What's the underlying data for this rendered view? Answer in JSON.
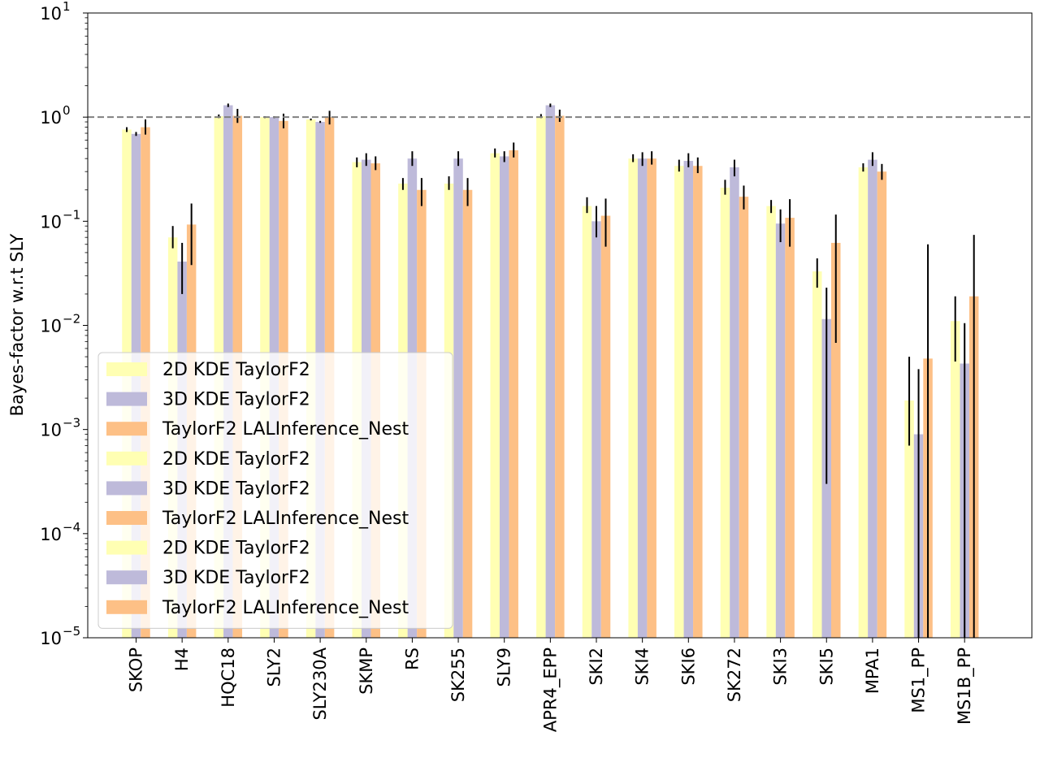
{
  "chart_data": {
    "type": "bar",
    "title": "",
    "xlabel": "",
    "ylabel": "Bayes-factor w.r.t SLY",
    "yscale": "log",
    "ylim": [
      1e-05,
      10
    ],
    "y_ticks": [
      {
        "value": 1e-05,
        "base": "10",
        "exp": "−5"
      },
      {
        "value": 0.0001,
        "base": "10",
        "exp": "−4"
      },
      {
        "value": 0.001,
        "base": "10",
        "exp": "−3"
      },
      {
        "value": 0.01,
        "base": "10",
        "exp": "−2"
      },
      {
        "value": 0.1,
        "base": "10",
        "exp": "−1"
      },
      {
        "value": 1,
        "base": "10",
        "exp": "0"
      },
      {
        "value": 10,
        "base": "10",
        "exp": "1"
      }
    ],
    "reference_line": {
      "y": 1,
      "style": "dashed",
      "color": "#808080"
    },
    "grid": false,
    "legend_position": "lower-left",
    "legend": [
      {
        "label": "2D KDE TaylorF2",
        "color": "#ffffb3"
      },
      {
        "label": "3D KDE TaylorF2",
        "color": "#bebada"
      },
      {
        "label": "TaylorF2 LALInference_Nest",
        "color": "#fdc086"
      },
      {
        "label": "2D KDE TaylorF2",
        "color": "#ffffb3"
      },
      {
        "label": "3D KDE TaylorF2",
        "color": "#bebada"
      },
      {
        "label": "TaylorF2 LALInference_Nest",
        "color": "#fdc086"
      },
      {
        "label": "2D KDE TaylorF2",
        "color": "#ffffb3"
      },
      {
        "label": "3D KDE TaylorF2",
        "color": "#bebada"
      },
      {
        "label": "TaylorF2 LALInference_Nest",
        "color": "#fdc086"
      }
    ],
    "categories": [
      "SKOP",
      "H4",
      "HQC18",
      "SLY2",
      "SLY230A",
      "SKMP",
      "RS",
      "SK255",
      "SLY9",
      "APR4_EPP",
      "SKI2",
      "SKI4",
      "SKI6",
      "SK272",
      "SKI3",
      "SKI5",
      "MPA1",
      "MS1_PP",
      "MS1B_PP"
    ],
    "series": [
      {
        "name": "2D KDE TaylorF2",
        "color": "#ffffb3",
        "values": [
          0.76,
          0.07,
          1.02,
          1.0,
          0.95,
          0.37,
          0.23,
          0.23,
          0.45,
          1.02,
          0.14,
          0.4,
          0.34,
          0.21,
          0.14,
          0.033,
          0.33,
          0.0019,
          0.011
        ],
        "err_low": [
          0.72,
          0.055,
          0.98,
          0.98,
          0.93,
          0.33,
          0.2,
          0.2,
          0.41,
          0.98,
          0.12,
          0.37,
          0.3,
          0.18,
          0.12,
          0.023,
          0.3,
          0.0007,
          0.0045
        ],
        "err_high": [
          0.8,
          0.09,
          1.06,
          1.02,
          0.97,
          0.41,
          0.26,
          0.27,
          0.5,
          1.07,
          0.17,
          0.44,
          0.39,
          0.25,
          0.16,
          0.044,
          0.36,
          0.005,
          0.019
        ]
      },
      {
        "name": "3D KDE TaylorF2",
        "color": "#bebada",
        "values": [
          0.69,
          0.041,
          1.3,
          1.0,
          0.9,
          0.39,
          0.4,
          0.4,
          0.42,
          1.3,
          0.1,
          0.4,
          0.38,
          0.33,
          0.095,
          0.0115,
          0.39,
          0.0009,
          0.0043
        ],
        "err_low": [
          0.66,
          0.02,
          1.25,
          0.98,
          0.88,
          0.34,
          0.34,
          0.34,
          0.37,
          1.25,
          0.07,
          0.34,
          0.33,
          0.27,
          0.063,
          0.0003,
          0.34,
          1e-05,
          1e-05
        ],
        "err_high": [
          0.72,
          0.062,
          1.35,
          1.02,
          0.92,
          0.45,
          0.47,
          0.47,
          0.47,
          1.35,
          0.14,
          0.46,
          0.45,
          0.39,
          0.13,
          0.023,
          0.46,
          0.0038,
          0.0105
        ]
      },
      {
        "name": "TaylorF2 LALInference_Nest",
        "color": "#fdc086",
        "values": [
          0.8,
          0.093,
          1.03,
          0.92,
          1.0,
          0.36,
          0.2,
          0.2,
          0.48,
          1.03,
          0.113,
          0.4,
          0.34,
          0.172,
          0.108,
          0.062,
          0.3,
          0.0048,
          0.019
        ],
        "err_low": [
          0.68,
          0.038,
          0.88,
          0.78,
          0.85,
          0.31,
          0.14,
          0.14,
          0.41,
          0.9,
          0.057,
          0.35,
          0.29,
          0.13,
          0.057,
          0.0068,
          0.25,
          1e-05,
          1e-05
        ],
        "err_high": [
          0.95,
          0.148,
          1.2,
          1.08,
          1.15,
          0.42,
          0.26,
          0.26,
          0.57,
          1.18,
          0.165,
          0.47,
          0.41,
          0.22,
          0.163,
          0.116,
          0.355,
          0.06,
          0.074
        ]
      }
    ]
  }
}
